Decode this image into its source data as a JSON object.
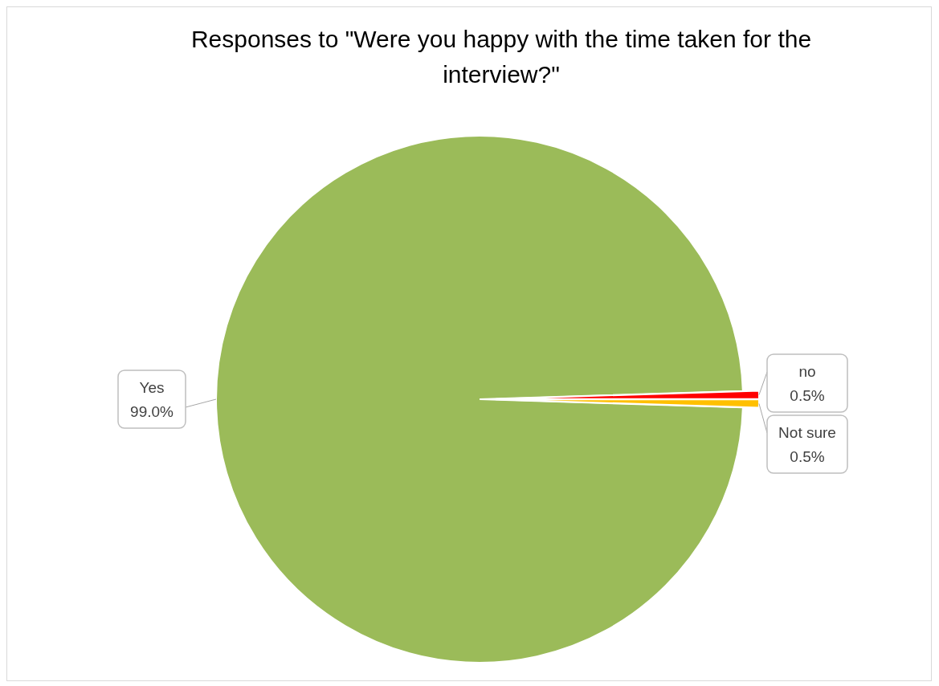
{
  "chart_data": {
    "type": "pie",
    "title": "Responses to \"Were you happy with the time taken for the interview?\"",
    "categories": [
      "Yes",
      "no",
      "Not sure"
    ],
    "values": [
      99.0,
      0.5,
      0.5
    ],
    "colors": [
      "#9bbb59",
      "#ff0000",
      "#ffc000"
    ],
    "value_labels": [
      "99.0%",
      "0.5%",
      "0.5%"
    ],
    "legend": false
  }
}
